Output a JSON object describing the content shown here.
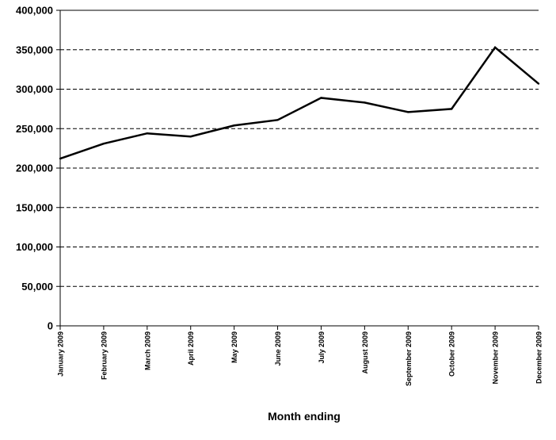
{
  "chart_data": {
    "type": "line",
    "title": "",
    "xlabel": "Month ending",
    "ylabel": "",
    "categories": [
      "January 2009",
      "February 2009",
      "March 2009",
      "April 2009",
      "May 2009",
      "June 2009",
      "July 2009",
      "August 2009",
      "September 2009",
      "October 2009",
      "November 2009",
      "December 2009"
    ],
    "series": [
      {
        "values": [
          212000,
          231000,
          244000,
          240000,
          254000,
          261000,
          289000,
          283000,
          271000,
          275000,
          353000,
          307000
        ]
      }
    ],
    "ylim": [
      0,
      400000
    ],
    "yticks": [
      0,
      50000,
      100000,
      150000,
      200000,
      250000,
      300000,
      350000,
      400000
    ],
    "ytick_labels": [
      "0",
      "50,000",
      "100,000",
      "150,000",
      "200,000",
      "250,000",
      "300,000",
      "350,000",
      "400,000"
    ],
    "grid": "horizontal-dashed",
    "legend": "none",
    "colors": {
      "line": "#000000",
      "grid": "#000000",
      "axis": "#000000"
    }
  }
}
